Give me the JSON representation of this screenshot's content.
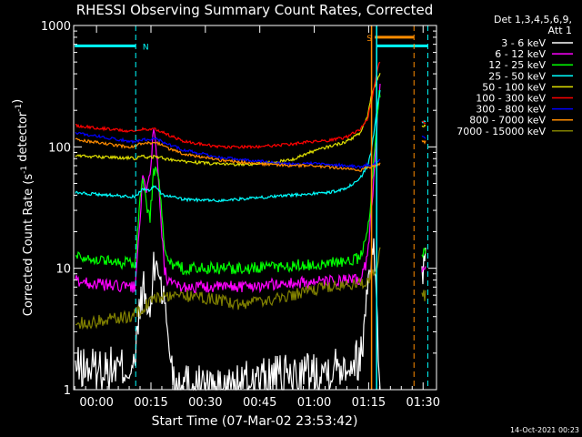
{
  "chart_data": {
    "type": "line",
    "title": "RHESSI Observing Summary Count Rates, Corrected",
    "xlabel": "Start Time (07-Mar-02 23:53:42)",
    "ylabel": "Corrected Count Rate (s⁻¹ detector⁻¹)",
    "ylabel_parts": {
      "pre": "Corrected Count Rate (s",
      "sup1": "-1",
      "mid": " detector",
      "sup2": "-1",
      "post": ")"
    },
    "yscale": "log",
    "xlim_min": [
      0,
      100
    ],
    "ylim": [
      1,
      1000
    ],
    "x_ticks": [
      {
        "v": 6.3,
        "label": "00:00"
      },
      {
        "v": 21.3,
        "label": "00:15"
      },
      {
        "v": 36.3,
        "label": "00:30"
      },
      {
        "v": 51.3,
        "label": "00:45"
      },
      {
        "v": 66.3,
        "label": "01:00"
      },
      {
        "v": 81.3,
        "label": "01:15"
      },
      {
        "v": 96.3,
        "label": "01:30"
      }
    ],
    "y_ticks": [
      {
        "v": 1,
        "label": "1"
      },
      {
        "v": 10,
        "label": "10"
      },
      {
        "v": 100,
        "label": "100"
      },
      {
        "v": 1000,
        "label": "1000"
      }
    ],
    "legend_header": [
      "Det 1,3,4,5,6,9,",
      "Att 1"
    ],
    "legend_position": "right",
    "footer": "14-Oct-2021 00:23",
    "gaps": [
      [
        0,
        0.5
      ],
      [
        84.5,
        95.8
      ]
    ],
    "series": [
      {
        "name": "3 - 6 keV",
        "color": "#ffffff",
        "points": [
          [
            0.5,
            1.5
          ],
          [
            17,
            1.5
          ],
          [
            17.5,
            3
          ],
          [
            19,
            7
          ],
          [
            20,
            5
          ],
          [
            21,
            4
          ],
          [
            22,
            9
          ],
          [
            23,
            12
          ],
          [
            24,
            8
          ],
          [
            25,
            5
          ],
          [
            26,
            3
          ],
          [
            27,
            1.6
          ],
          [
            28,
            1.2
          ],
          [
            40,
            1
          ],
          [
            50,
            1.2
          ],
          [
            60,
            1.3
          ],
          [
            70,
            1.5
          ],
          [
            79,
            1.8
          ],
          [
            80,
            3
          ],
          [
            81,
            8
          ],
          [
            82,
            12
          ],
          [
            82.5,
            20
          ],
          [
            84.5,
            1
          ],
          [
            95.8,
            1
          ],
          [
            96,
            10
          ],
          [
            97,
            10
          ]
        ]
      },
      {
        "name": "6 - 12 keV",
        "color": "#ff00ff",
        "points": [
          [
            0.5,
            8
          ],
          [
            5,
            7.5
          ],
          [
            10,
            7.2
          ],
          [
            15,
            7
          ],
          [
            17,
            7
          ],
          [
            18,
            20
          ],
          [
            19,
            55
          ],
          [
            20,
            40
          ],
          [
            21,
            60
          ],
          [
            22,
            140
          ],
          [
            23,
            80
          ],
          [
            24,
            25
          ],
          [
            25,
            10
          ],
          [
            26,
            7.5
          ],
          [
            30,
            7
          ],
          [
            40,
            7
          ],
          [
            50,
            7.2
          ],
          [
            60,
            7.5
          ],
          [
            70,
            7.8
          ],
          [
            79,
            8
          ],
          [
            81,
            12
          ],
          [
            82,
            30
          ],
          [
            83,
            70
          ],
          [
            84,
            250
          ],
          [
            84.5,
            300
          ],
          [
            95.8,
            10
          ],
          [
            96,
            10
          ],
          [
            97,
            10
          ]
        ]
      },
      {
        "name": "12 - 25 keV",
        "color": "#00ff00",
        "points": [
          [
            0.5,
            13
          ],
          [
            5,
            12
          ],
          [
            10,
            11.5
          ],
          [
            15,
            11
          ],
          [
            17,
            11
          ],
          [
            18,
            30
          ],
          [
            19,
            55
          ],
          [
            20,
            35
          ],
          [
            21,
            25
          ],
          [
            22,
            60
          ],
          [
            23,
            70
          ],
          [
            24,
            35
          ],
          [
            25,
            14
          ],
          [
            26,
            11
          ],
          [
            30,
            10
          ],
          [
            40,
            10
          ],
          [
            50,
            10
          ],
          [
            60,
            10.5
          ],
          [
            70,
            11
          ],
          [
            79,
            12
          ],
          [
            81,
            20
          ],
          [
            82,
            40
          ],
          [
            83,
            100
          ],
          [
            84,
            250
          ],
          [
            84.5,
            280
          ],
          [
            95.8,
            13
          ],
          [
            96,
            13
          ],
          [
            97,
            13
          ]
        ]
      },
      {
        "name": "25 - 50 keV",
        "color": "#00ffff",
        "points": [
          [
            0.5,
            42
          ],
          [
            5,
            41
          ],
          [
            10,
            40
          ],
          [
            15,
            39
          ],
          [
            17,
            39
          ],
          [
            18,
            42
          ],
          [
            19,
            45
          ],
          [
            20,
            45
          ],
          [
            21,
            43
          ],
          [
            22,
            47
          ],
          [
            23,
            46
          ],
          [
            24,
            42
          ],
          [
            25,
            40
          ],
          [
            30,
            37
          ],
          [
            40,
            36
          ],
          [
            50,
            38
          ],
          [
            60,
            40
          ],
          [
            70,
            42
          ],
          [
            75,
            45
          ],
          [
            79,
            55
          ],
          [
            81,
            70
          ],
          [
            82,
            90
          ],
          [
            83,
            150
          ],
          [
            84,
            250
          ],
          [
            84.5,
            300
          ],
          [
            95.8,
            150
          ],
          [
            96,
            160
          ],
          [
            97,
            160
          ]
        ]
      },
      {
        "name": "50 - 100 keV",
        "color": "#e0e000",
        "points": [
          [
            0.5,
            85
          ],
          [
            5,
            83
          ],
          [
            10,
            82
          ],
          [
            15,
            81
          ],
          [
            17,
            80
          ],
          [
            18,
            82
          ],
          [
            19,
            84
          ],
          [
            20,
            82
          ],
          [
            21,
            82
          ],
          [
            22,
            83
          ],
          [
            24,
            82
          ],
          [
            25,
            80
          ],
          [
            30,
            76
          ],
          [
            40,
            72
          ],
          [
            50,
            72
          ],
          [
            60,
            78
          ],
          [
            65,
            90
          ],
          [
            70,
            100
          ],
          [
            75,
            110
          ],
          [
            79,
            130
          ],
          [
            81,
            180
          ],
          [
            82,
            260
          ],
          [
            83,
            320
          ],
          [
            84,
            380
          ],
          [
            84.5,
            400
          ],
          [
            95.8,
            140
          ],
          [
            96,
            150
          ],
          [
            97,
            150
          ]
        ]
      },
      {
        "name": "100 - 300 keV",
        "color": "#ff0000",
        "points": [
          [
            0.5,
            150
          ],
          [
            5,
            145
          ],
          [
            10,
            140
          ],
          [
            15,
            135
          ],
          [
            17,
            135
          ],
          [
            18,
            138
          ],
          [
            19,
            140
          ],
          [
            20,
            140
          ],
          [
            21,
            138
          ],
          [
            22,
            140
          ],
          [
            24,
            135
          ],
          [
            25,
            130
          ],
          [
            30,
            112
          ],
          [
            40,
            100
          ],
          [
            50,
            100
          ],
          [
            60,
            105
          ],
          [
            65,
            110
          ],
          [
            70,
            112
          ],
          [
            75,
            120
          ],
          [
            79,
            140
          ],
          [
            81,
            170
          ],
          [
            82,
            230
          ],
          [
            83,
            330
          ],
          [
            84,
            480
          ],
          [
            84.5,
            500
          ],
          [
            95.8,
            160
          ],
          [
            96,
            160
          ],
          [
            97,
            160
          ]
        ]
      },
      {
        "name": "300 - 800 keV",
        "color": "#0000ff",
        "points": [
          [
            0.5,
            130
          ],
          [
            5,
            125
          ],
          [
            10,
            118
          ],
          [
            15,
            112
          ],
          [
            17,
            110
          ],
          [
            18,
            112
          ],
          [
            19,
            115
          ],
          [
            20,
            115
          ],
          [
            21,
            114
          ],
          [
            22,
            118
          ],
          [
            24,
            112
          ],
          [
            25,
            108
          ],
          [
            30,
            95
          ],
          [
            40,
            82
          ],
          [
            50,
            77
          ],
          [
            60,
            72
          ],
          [
            65,
            73
          ],
          [
            70,
            72
          ],
          [
            75,
            70
          ],
          [
            79,
            68
          ],
          [
            80,
            69
          ],
          [
            81,
            72
          ],
          [
            81.5,
            70
          ],
          [
            95.8,
            120
          ],
          [
            96,
            120
          ],
          [
            97,
            120
          ]
        ]
      },
      {
        "name": "800 - 7000 keV",
        "color": "#ff8c00",
        "points": [
          [
            0.5,
            115
          ],
          [
            5,
            110
          ],
          [
            10,
            105
          ],
          [
            15,
            100
          ],
          [
            17,
            100
          ],
          [
            18,
            105
          ],
          [
            19,
            108
          ],
          [
            20,
            108
          ],
          [
            21,
            107
          ],
          [
            22,
            110
          ],
          [
            24,
            105
          ],
          [
            25,
            100
          ],
          [
            30,
            88
          ],
          [
            40,
            78
          ],
          [
            50,
            73
          ],
          [
            60,
            70
          ],
          [
            65,
            70
          ],
          [
            70,
            68
          ],
          [
            75,
            66
          ],
          [
            79,
            64
          ],
          [
            80,
            66
          ],
          [
            81,
            68
          ],
          [
            81.5,
            66
          ],
          [
            95.8,
            110
          ],
          [
            96,
            110
          ],
          [
            97,
            110
          ]
        ]
      },
      {
        "name": "7000 - 15000 keV",
        "color": "#808000",
        "points": [
          [
            0.5,
            3.5
          ],
          [
            5,
            3.6
          ],
          [
            10,
            3.8
          ],
          [
            15,
            4
          ],
          [
            17,
            4.2
          ],
          [
            18,
            4.5
          ],
          [
            20,
            5
          ],
          [
            22,
            5.5
          ],
          [
            24,
            5.8
          ],
          [
            25,
            6
          ],
          [
            30,
            6
          ],
          [
            40,
            5.5
          ],
          [
            45,
            5
          ],
          [
            50,
            5.2
          ],
          [
            55,
            5.5
          ],
          [
            60,
            6
          ],
          [
            65,
            6.5
          ],
          [
            70,
            7
          ],
          [
            75,
            7.2
          ],
          [
            79,
            7.5
          ],
          [
            81,
            8
          ],
          [
            82,
            9
          ],
          [
            83,
            10
          ],
          [
            84,
            12
          ],
          [
            84.5,
            14
          ],
          [
            95.8,
            6
          ],
          [
            96,
            6
          ],
          [
            97,
            6
          ]
        ]
      }
    ],
    "vlines": [
      {
        "x": 17.1,
        "color": "#00ffff",
        "style": "dashed"
      },
      {
        "x": 82.1,
        "color": "#ff8c00",
        "style": "solid"
      },
      {
        "x": 83.5,
        "color": "#00ffff",
        "style": "solid"
      },
      {
        "x": 93.8,
        "color": "#ff8c00",
        "style": "dashed"
      },
      {
        "x": 97.6,
        "color": "#00ffff",
        "style": "dashed"
      }
    ],
    "bars": [
      {
        "x_from": 0.3,
        "x_to": 17.1,
        "value": 680,
        "color": "#00ffff",
        "label": "N"
      },
      {
        "x_from": 83.0,
        "x_to": 93.8,
        "value": 800,
        "color": "#ff8c00",
        "label": "S"
      },
      {
        "x_from": 83.5,
        "x_to": 97.6,
        "value": 680,
        "color": "#00ffff",
        "label": ""
      }
    ]
  }
}
